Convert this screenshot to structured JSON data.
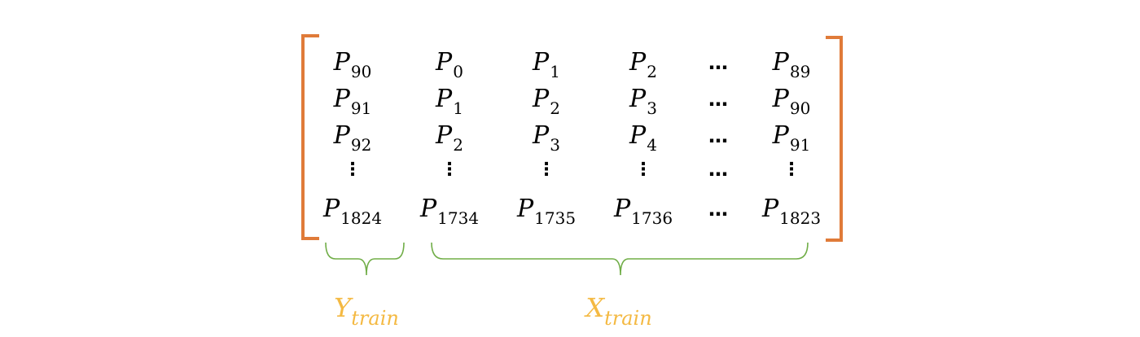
{
  "matrix": {
    "columns": [
      {
        "cells": [
          {
            "base": "P",
            "sub": "90"
          },
          {
            "base": "P",
            "sub": "91"
          },
          {
            "base": "P",
            "sub": "92"
          },
          {
            "glyph": "⋮"
          },
          {
            "base": "P",
            "sub": "1824"
          }
        ]
      },
      {
        "cells": [
          {
            "base": "P",
            "sub": "0"
          },
          {
            "base": "P",
            "sub": "1"
          },
          {
            "base": "P",
            "sub": "2"
          },
          {
            "glyph": "⋮"
          },
          {
            "base": "P",
            "sub": "1734"
          }
        ]
      },
      {
        "cells": [
          {
            "base": "P",
            "sub": "1"
          },
          {
            "base": "P",
            "sub": "2"
          },
          {
            "base": "P",
            "sub": "3"
          },
          {
            "glyph": "⋮"
          },
          {
            "base": "P",
            "sub": "1735"
          }
        ]
      },
      {
        "cells": [
          {
            "base": "P",
            "sub": "2"
          },
          {
            "base": "P",
            "sub": "3"
          },
          {
            "base": "P",
            "sub": "4"
          },
          {
            "glyph": "⋮"
          },
          {
            "base": "P",
            "sub": "1736"
          }
        ]
      },
      {
        "cells": [
          {
            "glyph": "…"
          },
          {
            "glyph": "…"
          },
          {
            "glyph": "…"
          },
          {
            "glyph": "…"
          },
          {
            "glyph": "…"
          }
        ]
      },
      {
        "cells": [
          {
            "base": "P",
            "sub": "89"
          },
          {
            "base": "P",
            "sub": "90"
          },
          {
            "base": "P",
            "sub": "91"
          },
          {
            "glyph": "⋮"
          },
          {
            "base": "P",
            "sub": "1823"
          }
        ]
      }
    ]
  },
  "labels": {
    "y_train": {
      "base": "Y",
      "sub": "train"
    },
    "x_train": {
      "base": "X",
      "sub": "train"
    }
  },
  "colors": {
    "bracket": "#e07b39",
    "brace": "#70ad47",
    "label": "#f4b942",
    "text": "#000000"
  }
}
